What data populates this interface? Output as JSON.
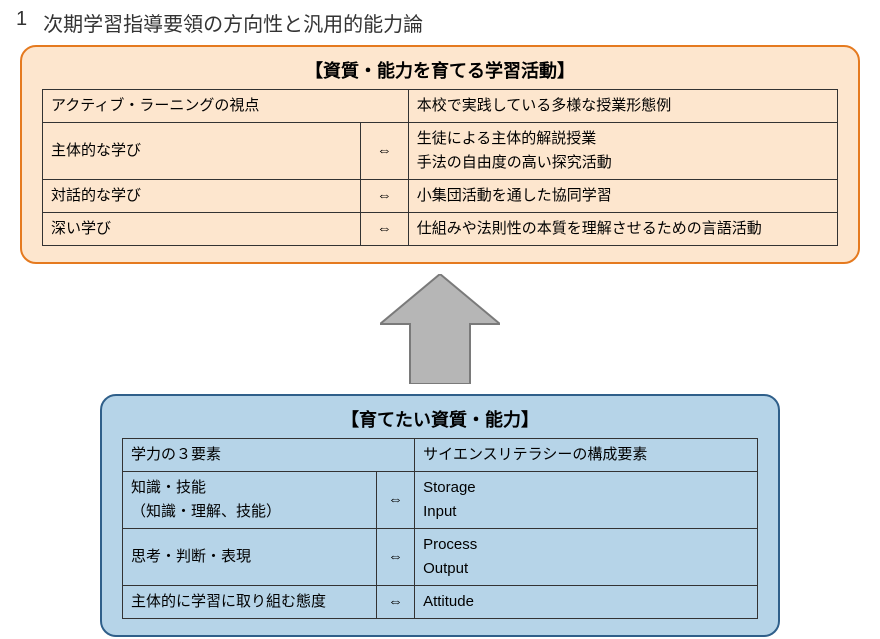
{
  "heading_number": "1",
  "heading_text": "次期学習指導要領の方向性と汎用的能力論",
  "top_panel": {
    "border_color": "#e57a1f",
    "bg_color": "#fde6ce",
    "title": "【資質・能力を育てる学習活動】",
    "header_left": "アクティブ・ラーニングの視点",
    "header_right": "本校で実践している多様な授業形態例",
    "rows": [
      {
        "left": "主体的な学び",
        "arrow": "⇔",
        "right": "生徒による主体的解説授業\n手法の自由度の高い探究活動"
      },
      {
        "left": "対話的な学び",
        "arrow": "⇔",
        "right": "小集団活動を通した協同学習"
      },
      {
        "left": "深い学び",
        "arrow": "⇔",
        "right": "仕組みや法則性の本質を理解させるための言語活動"
      }
    ]
  },
  "arrow": {
    "fill": "#b6b6b6",
    "stroke": "#7a7a7a",
    "width": 120,
    "height": 110
  },
  "bottom_panel": {
    "border_color": "#2f5f8a",
    "bg_color": "#b6d4e8",
    "title": "【育てたい資質・能力】",
    "header_left": "学力の３要素",
    "header_right": "サイエンスリテラシーの構成要素",
    "rows": [
      {
        "left": "知識・技能\n（知識・理解、技能）",
        "arrow": "⇔",
        "right": "Storage\nInput"
      },
      {
        "left": "思考・判断・表現",
        "arrow": "⇔",
        "right": "Process\nOutput"
      },
      {
        "left": "主体的に学習に取り組む態度",
        "arrow": "⇔",
        "right": "Attitude"
      }
    ]
  }
}
